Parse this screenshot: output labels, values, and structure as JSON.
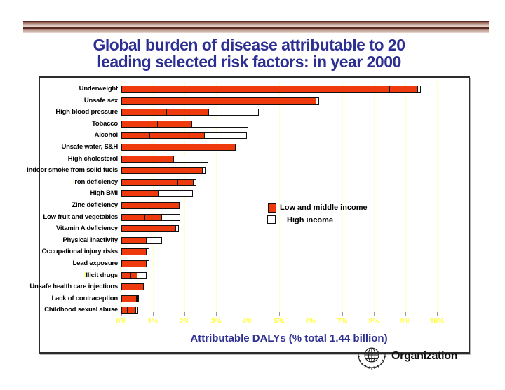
{
  "slide": {
    "title_line1": "Global burden of disease attributable to 20",
    "title_line2": "leading selected risk factors: in year 2000",
    "footer": {
      "org_text": "Organization"
    },
    "colors": {
      "bar_red": "#EE3A0D",
      "bar_white": "#FFFFFF",
      "title_navy": "#2D2F92",
      "tick_yellow": "#FFFF33",
      "gridline_pale_yellow": "#FFFFCC",
      "rule_maroon": "#582A21"
    }
  },
  "chart_data": {
    "type": "bar",
    "orientation": "horizontal",
    "xlabel": "Attributable DALYs (% total 1.44 billion)",
    "xlim": [
      0,
      10
    ],
    "x_ticks": [
      "0%",
      "1%",
      "2%",
      "3%",
      "4%",
      "5%",
      "6%",
      "7%",
      "8%",
      "9%",
      "10%"
    ],
    "grid": "vertical, pale yellow, 1% intervals",
    "legend_position": "center-right inside plot",
    "legend": [
      {
        "label": "Low and middle income",
        "color": "#EE3A0D"
      },
      {
        "label": "High income",
        "color": "#FFFFFF"
      }
    ],
    "categories": [
      "Underweight",
      "Unsafe sex",
      "High blood pressure",
      "Tobacco",
      "Alcohol",
      "Unsafe water, S&H",
      "High cholesterol",
      "Indoor smoke from solid fuels",
      "Iron deficiency",
      "High BMI",
      "Zinc deficiency",
      "Low fruit and vegetables",
      "Vitamin A deficiency",
      "Physical inactivity",
      "Occupational injury  risks",
      "Lead exposure",
      "Illicit drugs",
      "Unsafe health care injections",
      "Lack of contraception",
      "Childhood sexual abuse"
    ],
    "rows": [
      {
        "label": "Underweight",
        "yellow_first_letter": false,
        "red_segments": [
          8.5,
          0.9
        ],
        "white": 0.1,
        "total": 9.5
      },
      {
        "label": "Unsafe sex",
        "yellow_first_letter": false,
        "red_segments": [
          5.8,
          0.4
        ],
        "white": 0.1,
        "total": 6.3
      },
      {
        "label": "High blood pressure",
        "yellow_first_letter": false,
        "red_segments": [
          1.45,
          1.35
        ],
        "white": 1.6,
        "total": 4.4
      },
      {
        "label": "Tobacco",
        "yellow_first_letter": false,
        "red_segments": [
          1.15,
          1.1
        ],
        "white": 1.8,
        "total": 4.05
      },
      {
        "label": "Alcohol",
        "yellow_first_letter": false,
        "red_segments": [
          0.9,
          1.75
        ],
        "white": 1.35,
        "total": 4.0
      },
      {
        "label": "Unsafe water, S&H",
        "yellow_first_letter": false,
        "red_segments": [
          3.2,
          0.45
        ],
        "white": 0.05,
        "total": 3.7
      },
      {
        "label": "High cholesterol",
        "yellow_first_letter": false,
        "red_segments": [
          1.05,
          0.65
        ],
        "white": 1.1,
        "total": 2.8
      },
      {
        "label": "Indoor smoke from solid fuels",
        "yellow_first_letter": false,
        "red_segments": [
          2.15,
          0.45
        ],
        "white": 0.1,
        "total": 2.7
      },
      {
        "label": "Iron deficiency",
        "yellow_first_letter": true,
        "red_segments": [
          1.8,
          0.5
        ],
        "white": 0.1,
        "total": 2.4
      },
      {
        "label": "High BMI",
        "yellow_first_letter": false,
        "red_segments": [
          0.5,
          0.68
        ],
        "white": 1.12,
        "total": 2.3
      },
      {
        "label": "Zinc deficiency",
        "yellow_first_letter": false,
        "red_segments": [
          1.85
        ],
        "white": 0.05,
        "total": 1.9
      },
      {
        "label": "Low fruit and vegetables",
        "yellow_first_letter": false,
        "red_segments": [
          0.75,
          0.55
        ],
        "white": 0.6,
        "total": 1.9
      },
      {
        "label": "Vitamin A deficiency",
        "yellow_first_letter": false,
        "red_segments": [
          1.73
        ],
        "white": 0.1,
        "total": 1.83
      },
      {
        "label": "Physical inactivity",
        "yellow_first_letter": false,
        "red_segments": [
          0.5,
          0.32
        ],
        "white": 0.5,
        "total": 1.32
      },
      {
        "label": "Occupational injury  risks",
        "yellow_first_letter": false,
        "red_segments": [
          0.5,
          0.3
        ],
        "white": 0.12,
        "total": 0.92
      },
      {
        "label": "Lead exposure",
        "yellow_first_letter": false,
        "red_segments": [
          0.45,
          0.37
        ],
        "white": 0.1,
        "total": 0.92
      },
      {
        "label": "Illicit drugs",
        "yellow_first_letter": true,
        "red_segments": [
          0.3,
          0.23
        ],
        "white": 0.3,
        "total": 0.83
      },
      {
        "label": "Unsafe health care injections",
        "yellow_first_letter": false,
        "red_segments": [
          0.5,
          0.23
        ],
        "white": 0,
        "total": 0.73
      },
      {
        "label": "Lack of contraception",
        "yellow_first_letter": false,
        "red_segments": [
          0.49,
          0.06
        ],
        "white": 0.03,
        "total": 0.58
      },
      {
        "label": "Childhood sexual abuse",
        "yellow_first_letter": false,
        "red_segments": [
          0.2,
          0.29
        ],
        "white": 0.09,
        "total": 0.58
      }
    ]
  }
}
